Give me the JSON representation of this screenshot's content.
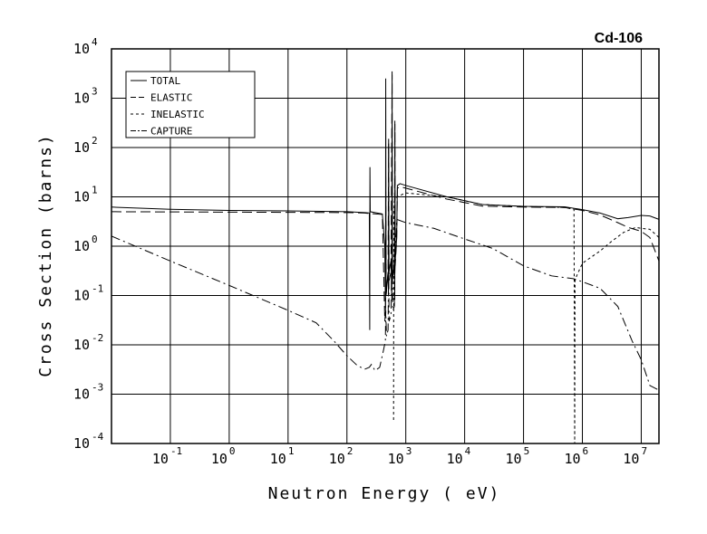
{
  "chart_data": {
    "type": "line",
    "title": "Cd-106",
    "xlabel": "Neutron Energy ( eV)",
    "ylabel": "Cross Section (barns)",
    "x_scale": "log",
    "y_scale": "log",
    "xlim": [
      0.01,
      20000000
    ],
    "ylim": [
      0.0001,
      10000
    ],
    "grid": true,
    "legend_position": "top-left",
    "x_ticks": [
      {
        "value": 0.1,
        "base": "10",
        "exp": "-1"
      },
      {
        "value": 1,
        "base": "10",
        "exp": "0"
      },
      {
        "value": 10,
        "base": "10",
        "exp": "1"
      },
      {
        "value": 100,
        "base": "10",
        "exp": "2"
      },
      {
        "value": 1000,
        "base": "10",
        "exp": "3"
      },
      {
        "value": 10000,
        "base": "10",
        "exp": "4"
      },
      {
        "value": 100000,
        "base": "10",
        "exp": "5"
      },
      {
        "value": 1000000,
        "base": "10",
        "exp": "6"
      },
      {
        "value": 10000000,
        "base": "10",
        "exp": "7"
      }
    ],
    "y_ticks": [
      {
        "value": 0.0001,
        "base": "10",
        "exp": "-4"
      },
      {
        "value": 0.001,
        "base": "10",
        "exp": "-3"
      },
      {
        "value": 0.01,
        "base": "10",
        "exp": "-2"
      },
      {
        "value": 0.1,
        "base": "10",
        "exp": "-1"
      },
      {
        "value": 1,
        "base": "10",
        "exp": "0"
      },
      {
        "value": 10,
        "base": "10",
        "exp": "1"
      },
      {
        "value": 100,
        "base": "10",
        "exp": "2"
      },
      {
        "value": 1000,
        "base": "10",
        "exp": "3"
      },
      {
        "value": 10000,
        "base": "10",
        "exp": "4"
      }
    ],
    "series": [
      {
        "name": "TOTAL",
        "dash": "",
        "points": [
          [
            0.01,
            6.2
          ],
          [
            0.1,
            5.6
          ],
          [
            1,
            5.3
          ],
          [
            10,
            5.2
          ],
          [
            100,
            5.0
          ],
          [
            200,
            4.8
          ],
          [
            240,
            4.7
          ],
          [
            244,
            0.02
          ],
          [
            246,
            40
          ],
          [
            249,
            5.0
          ],
          [
            400,
            4.5
          ],
          [
            440,
            1.0
          ],
          [
            452,
            0.05
          ],
          [
            456,
            2500
          ],
          [
            462,
            0.1
          ],
          [
            500,
            0.3
          ],
          [
            508,
            0.12
          ],
          [
            511,
            150
          ],
          [
            516,
            0.3
          ],
          [
            560,
            0.5
          ],
          [
            580,
            0.08
          ],
          [
            585,
            3500
          ],
          [
            592,
            0.2
          ],
          [
            640,
            0.5
          ],
          [
            650,
            0.08
          ],
          [
            652,
            350
          ],
          [
            660,
            0.5
          ],
          [
            700,
            1.5
          ],
          [
            720,
            17
          ],
          [
            800,
            18.5
          ],
          [
            1000,
            17
          ],
          [
            5000,
            10
          ],
          [
            20000,
            7
          ],
          [
            100000,
            6.4
          ],
          [
            500000,
            6.3
          ],
          [
            1000000,
            5.5
          ],
          [
            2000000,
            4.7
          ],
          [
            4000000,
            3.6
          ],
          [
            6000000,
            3.8
          ],
          [
            10000000,
            4.2
          ],
          [
            14000000,
            4.1
          ],
          [
            20000000,
            3.5
          ]
        ]
      },
      {
        "name": "ELASTIC",
        "dash": "11,5",
        "points": [
          [
            0.01,
            5.0
          ],
          [
            0.1,
            4.95
          ],
          [
            1,
            4.9
          ],
          [
            10,
            4.85
          ],
          [
            100,
            4.8
          ],
          [
            200,
            4.7
          ],
          [
            240,
            4.6
          ],
          [
            400,
            4.4
          ],
          [
            440,
            0.03
          ],
          [
            452,
            0.05
          ],
          [
            456,
            25
          ],
          [
            462,
            0.1
          ],
          [
            500,
            0.3
          ],
          [
            511,
            120
          ],
          [
            520,
            0.2
          ],
          [
            560,
            0.3
          ],
          [
            585,
            3000
          ],
          [
            592,
            0.2
          ],
          [
            640,
            0.4
          ],
          [
            652,
            300
          ],
          [
            660,
            0.4
          ],
          [
            700,
            1.4
          ],
          [
            720,
            15
          ],
          [
            800,
            16
          ],
          [
            1000,
            15
          ],
          [
            5000,
            9
          ],
          [
            20000,
            6.5
          ],
          [
            100000,
            6.2
          ],
          [
            500000,
            6.1
          ],
          [
            1000000,
            5.3
          ],
          [
            2000000,
            4.3
          ],
          [
            4000000,
            3.0
          ],
          [
            6000000,
            2.4
          ],
          [
            10000000,
            2.0
          ],
          [
            14000000,
            1.5
          ],
          [
            20000000,
            0.5
          ]
        ]
      },
      {
        "name": "INELASTIC",
        "dash": "3,3",
        "points": [
          [
            620,
            0.0003
          ],
          [
            625,
            5
          ],
          [
            640,
            8
          ],
          [
            700,
            10
          ],
          [
            1000,
            12
          ],
          [
            5000,
            10
          ],
          [
            20000,
            7
          ],
          [
            100000,
            6.4
          ],
          [
            500000,
            6.1
          ],
          [
            720000,
            5.6
          ],
          [
            740000,
            0.0001
          ],
          [
            750000,
            0.2
          ],
          [
            800000,
            0.25
          ],
          [
            1000000,
            0.45
          ],
          [
            2000000,
            0.8
          ],
          [
            3000000,
            1.2
          ],
          [
            5000000,
            1.9
          ],
          [
            8000000,
            2.4
          ],
          [
            10000000,
            2.3
          ],
          [
            14000000,
            2.2
          ],
          [
            20000000,
            1.5
          ]
        ]
      },
      {
        "name": "CAPTURE",
        "dash": "10,4,2,4",
        "points": [
          [
            0.01,
            1.6
          ],
          [
            0.1,
            0.5
          ],
          [
            1,
            0.16
          ],
          [
            10,
            0.05
          ],
          [
            30,
            0.028
          ],
          [
            60,
            0.012
          ],
          [
            100,
            0.006
          ],
          [
            150,
            0.0038
          ],
          [
            200,
            0.0032
          ],
          [
            240,
            0.0035
          ],
          [
            260,
            0.004
          ],
          [
            300,
            0.003
          ],
          [
            360,
            0.0035
          ],
          [
            420,
            0.008
          ],
          [
            450,
            0.012
          ],
          [
            456,
            0.05
          ],
          [
            470,
            0.015
          ],
          [
            500,
            0.02
          ],
          [
            511,
            0.5
          ],
          [
            520,
            0.03
          ],
          [
            560,
            0.04
          ],
          [
            585,
            1.5
          ],
          [
            600,
            0.05
          ],
          [
            640,
            0.06
          ],
          [
            652,
            0.3
          ],
          [
            700,
            3.5
          ],
          [
            1000,
            3.0
          ],
          [
            3000,
            2.3
          ],
          [
            10000,
            1.4
          ],
          [
            30000,
            0.9
          ],
          [
            100000,
            0.4
          ],
          [
            300000,
            0.25
          ],
          [
            700000,
            0.22
          ],
          [
            1000000,
            0.19
          ],
          [
            2000000,
            0.14
          ],
          [
            4000000,
            0.06
          ],
          [
            7000000,
            0.012
          ],
          [
            10000000,
            0.005
          ],
          [
            14000000,
            0.0015
          ],
          [
            20000000,
            0.0012
          ]
        ]
      }
    ]
  }
}
